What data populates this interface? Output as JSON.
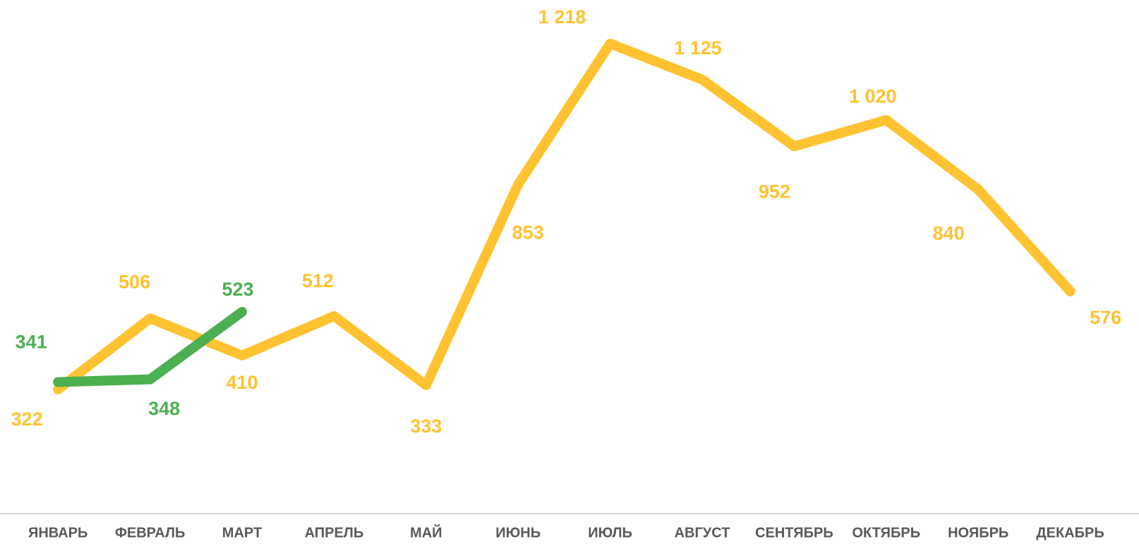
{
  "chart_data": {
    "type": "line",
    "categories": [
      "ЯНВАРЬ",
      "ФЕВРАЛЬ",
      "МАРТ",
      "АПРЕЛЬ",
      "МАЙ",
      "ИЮНЬ",
      "ИЮЛЬ",
      "АВГУСТ",
      "СЕНТЯБРЬ",
      "ОКТЯБРЬ",
      "НОЯБРЬ",
      "ДЕКАБРЬ"
    ],
    "series": [
      {
        "color": "#FFC230",
        "values": [
          322,
          506,
          410,
          512,
          333,
          853,
          1218,
          1125,
          952,
          1020,
          840,
          576
        ],
        "value_labels": [
          "322",
          "506",
          "410",
          "512",
          "333",
          "853",
          "1 218",
          "1 125",
          "952",
          "1 020",
          "840",
          "576"
        ]
      },
      {
        "color": "#4CAF50",
        "values": [
          341,
          348,
          523,
          null,
          null,
          null,
          null,
          null,
          null,
          null,
          null,
          null
        ],
        "value_labels": [
          "341",
          "348",
          "523",
          null,
          null,
          null,
          null,
          null,
          null,
          null,
          null,
          null
        ]
      }
    ],
    "ylim": [
      0,
      1300
    ]
  }
}
